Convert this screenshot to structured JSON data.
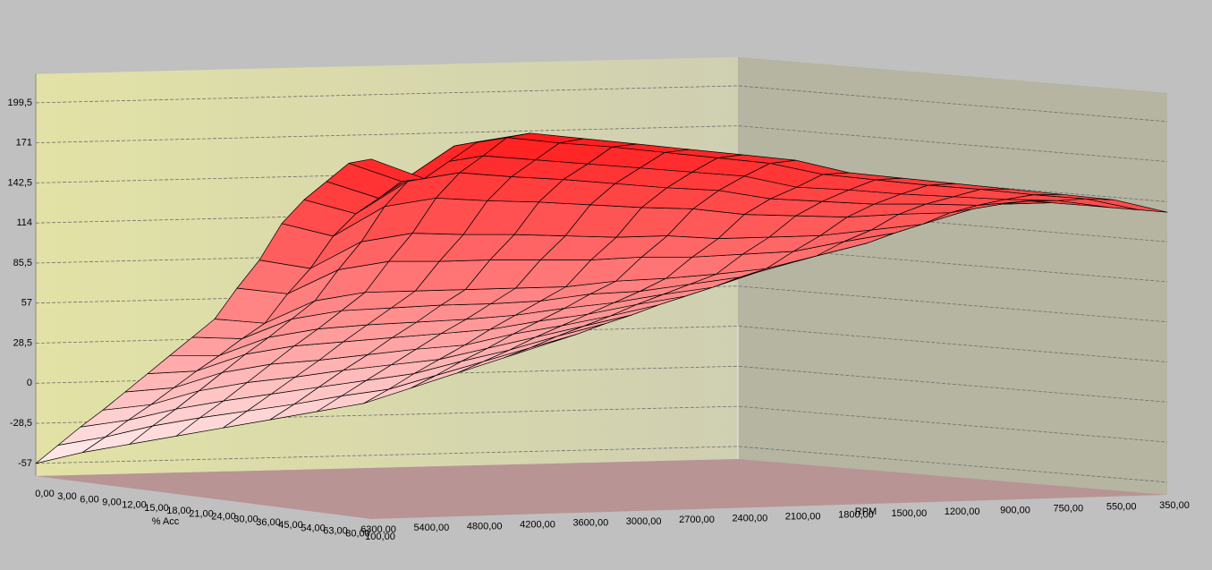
{
  "chart_data": {
    "type": "surface",
    "x_label": "% Acc",
    "x_categories": [
      "0,00",
      "3,00",
      "6,00",
      "9,00",
      "12,00",
      "15,00",
      "18,00",
      "21,00",
      "24,00",
      "30,00",
      "36,00",
      "45,00",
      "54,00",
      "63,00",
      "80,00",
      "100,00"
    ],
    "y_label": "RPM",
    "y_categories": [
      "6300,00",
      "5400,00",
      "4800,00",
      "4200,00",
      "3600,00",
      "3000,00",
      "2700,00",
      "2400,00",
      "2100,00",
      "1800,00",
      "1500,00",
      "1200,00",
      "900,00",
      "750,00",
      "550,00",
      "350,00"
    ],
    "zlim": [
      -66,
      220
    ],
    "zticks": [
      -57,
      {
        "value": -28.5,
        "label": "-28,5"
      },
      0,
      {
        "value": 28.5,
        "label": "28,5"
      },
      57,
      {
        "value": 85.5,
        "label": "85,5"
      },
      114,
      {
        "value": 142.5,
        "label": "142,5"
      },
      171,
      {
        "value": 199.5,
        "label": "199,5"
      }
    ],
    "grid": true,
    "color": "#ff0000",
    "z": [
      [
        -57,
        -42,
        -27,
        -13,
        2,
        17,
        32,
        47,
        62,
        86,
        108,
        136,
        155,
        170,
        185,
        190
      ],
      [
        -50,
        -37,
        -23,
        -10,
        4,
        18,
        31,
        45,
        58,
        81,
        101,
        126,
        144,
        157,
        171,
        175
      ],
      [
        -45,
        -30,
        -16,
        -1,
        14,
        29,
        43,
        58,
        73,
        97,
        119,
        146,
        166,
        180,
        195,
        200
      ],
      [
        -40,
        -25,
        -11,
        4,
        19,
        34,
        48,
        63,
        78,
        102,
        124,
        151,
        171,
        185,
        200,
        205
      ],
      [
        -35,
        -21,
        -7,
        7,
        21,
        36,
        50,
        64,
        78,
        101,
        122,
        148,
        167,
        181,
        195,
        200
      ],
      [
        -30,
        -17,
        -3,
        11,
        24,
        38,
        51,
        65,
        78,
        101,
        121,
        146,
        164,
        177,
        191,
        195
      ],
      [
        -25,
        -12,
        1,
        14,
        27,
        40,
        52,
        65,
        78,
        100,
        119,
        143,
        160,
        173,
        186,
        190
      ],
      [
        -20,
        -8,
        5,
        17,
        29,
        42,
        54,
        66,
        78,
        99,
        117,
        140,
        156,
        169,
        181,
        185
      ],
      [
        -10,
        1,
        13,
        24,
        36,
        47,
        58,
        70,
        81,
        100,
        117,
        138,
        153,
        165,
        176,
        180
      ],
      [
        0,
        10,
        20,
        31,
        41,
        51,
        61,
        71,
        82,
        99,
        114,
        133,
        146,
        156,
        167,
        170
      ],
      [
        10,
        19,
        29,
        38,
        47,
        57,
        66,
        75,
        84,
        100,
        114,
        131,
        143,
        153,
        162,
        165
      ],
      [
        20,
        28,
        37,
        45,
        54,
        62,
        70,
        79,
        87,
        101,
        114,
        129,
        140,
        149,
        157,
        160
      ],
      [
        40,
        47,
        54,
        61,
        68,
        75,
        81,
        88,
        95,
        107,
        117,
        130,
        139,
        146,
        153,
        155
      ],
      [
        60,
        65,
        71,
        76,
        82,
        87,
        92,
        98,
        103,
        112,
        120,
        130,
        137,
        143,
        148,
        150
      ],
      [
        100,
        103,
        105,
        108,
        111,
        114,
        116,
        119,
        122,
        126,
        130,
        135,
        139,
        141,
        144,
        145
      ],
      [
        135,
        135,
        135,
        135,
        135,
        135,
        135,
        135,
        135,
        135,
        135,
        135,
        135,
        135,
        135,
        135
      ]
    ]
  }
}
